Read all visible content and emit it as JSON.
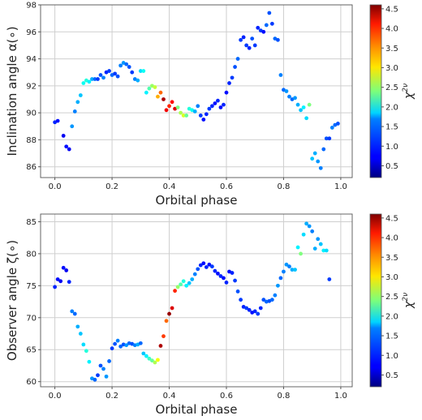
{
  "colorbar": {
    "label": "χ",
    "label_sub": "ν",
    "label_sup": "2",
    "min": 0.2,
    "max": 4.6,
    "ticks": [
      "0.5",
      "1.0",
      "1.5",
      "2.0",
      "2.5",
      "3.0",
      "3.5",
      "4.0",
      "4.5"
    ],
    "tick_values": [
      0.5,
      1.0,
      1.5,
      2.0,
      2.5,
      3.0,
      3.5,
      4.0,
      4.5
    ],
    "colormap": "jet"
  },
  "chart_data": [
    {
      "type": "scatter",
      "title": "",
      "xlabel": "Orbital phase",
      "ylabel": "Inclination angle α(∘)",
      "xlim": [
        -0.05,
        1.04
      ],
      "ylim": [
        85.2,
        98.0
      ],
      "xticks": [
        "0.0",
        "0.2",
        "0.4",
        "0.6",
        "0.8",
        "1.0"
      ],
      "xtick_values": [
        0.0,
        0.2,
        0.4,
        0.6,
        0.8,
        1.0
      ],
      "yticks": [
        "86",
        "88",
        "90",
        "92",
        "94",
        "96",
        "98"
      ],
      "ytick_values": [
        86,
        88,
        90,
        92,
        94,
        96,
        98
      ],
      "grid": true,
      "points": [
        [
          0.0,
          89.3,
          0.9
        ],
        [
          0.01,
          89.4,
          0.8
        ],
        [
          0.03,
          88.3,
          0.7
        ],
        [
          0.04,
          87.5,
          0.8
        ],
        [
          0.05,
          87.3,
          0.7
        ],
        [
          0.06,
          89.0,
          1.4
        ],
        [
          0.07,
          90.1,
          1.3
        ],
        [
          0.08,
          90.8,
          1.5
        ],
        [
          0.09,
          91.3,
          1.6
        ],
        [
          0.1,
          92.2,
          1.9
        ],
        [
          0.11,
          92.4,
          2.0
        ],
        [
          0.12,
          92.3,
          1.8
        ],
        [
          0.13,
          92.5,
          1.5
        ],
        [
          0.14,
          92.5,
          1.2
        ],
        [
          0.15,
          92.5,
          1.0
        ],
        [
          0.16,
          92.8,
          1.1
        ],
        [
          0.17,
          92.6,
          1.3
        ],
        [
          0.18,
          93.0,
          0.9
        ],
        [
          0.19,
          93.1,
          1.0
        ],
        [
          0.2,
          92.8,
          1.2
        ],
        [
          0.21,
          92.9,
          1.0
        ],
        [
          0.22,
          92.7,
          1.1
        ],
        [
          0.23,
          93.5,
          1.3
        ],
        [
          0.24,
          93.7,
          1.4
        ],
        [
          0.25,
          93.6,
          1.2
        ],
        [
          0.26,
          93.4,
          1.1
        ],
        [
          0.27,
          93.0,
          1.0
        ],
        [
          0.28,
          92.5,
          1.3
        ],
        [
          0.29,
          92.4,
          1.5
        ],
        [
          0.3,
          93.1,
          1.7
        ],
        [
          0.31,
          93.1,
          1.9
        ],
        [
          0.32,
          91.5,
          1.8
        ],
        [
          0.33,
          91.8,
          2.2
        ],
        [
          0.34,
          92.0,
          2.5
        ],
        [
          0.35,
          91.9,
          2.7
        ],
        [
          0.36,
          91.2,
          3.3
        ],
        [
          0.37,
          91.5,
          3.6
        ],
        [
          0.38,
          91.0,
          4.4
        ],
        [
          0.39,
          90.2,
          4.1
        ],
        [
          0.4,
          90.5,
          3.9
        ],
        [
          0.41,
          90.8,
          4.0
        ],
        [
          0.42,
          90.3,
          4.2
        ],
        [
          0.43,
          90.4,
          2.4
        ],
        [
          0.44,
          90.0,
          2.6
        ],
        [
          0.45,
          89.8,
          2.8
        ],
        [
          0.46,
          89.8,
          2.3
        ],
        [
          0.47,
          90.3,
          2.0
        ],
        [
          0.48,
          90.2,
          1.9
        ],
        [
          0.49,
          90.1,
          1.5
        ],
        [
          0.5,
          90.5,
          1.3
        ],
        [
          0.51,
          89.8,
          1.0
        ],
        [
          0.52,
          89.5,
          0.8
        ],
        [
          0.53,
          89.9,
          0.9
        ],
        [
          0.54,
          90.3,
          1.0
        ],
        [
          0.55,
          90.5,
          0.9
        ],
        [
          0.56,
          90.7,
          0.8
        ],
        [
          0.57,
          90.9,
          0.9
        ],
        [
          0.58,
          90.4,
          0.8
        ],
        [
          0.59,
          90.6,
          0.9
        ],
        [
          0.6,
          91.5,
          0.8
        ],
        [
          0.61,
          92.2,
          0.9
        ],
        [
          0.62,
          92.6,
          1.0
        ],
        [
          0.63,
          93.4,
          1.1
        ],
        [
          0.64,
          94.0,
          1.2
        ],
        [
          0.65,
          95.4,
          1.0
        ],
        [
          0.66,
          95.6,
          0.9
        ],
        [
          0.67,
          95.0,
          1.0
        ],
        [
          0.68,
          94.8,
          0.9
        ],
        [
          0.69,
          95.5,
          1.1
        ],
        [
          0.7,
          95.0,
          1.0
        ],
        [
          0.71,
          96.3,
          0.9
        ],
        [
          0.72,
          96.1,
          1.0
        ],
        [
          0.73,
          96.0,
          0.8
        ],
        [
          0.74,
          96.5,
          1.2
        ],
        [
          0.75,
          97.4,
          1.1
        ],
        [
          0.76,
          96.6,
          1.0
        ],
        [
          0.77,
          95.5,
          1.2
        ],
        [
          0.78,
          95.4,
          1.1
        ],
        [
          0.79,
          92.8,
          1.3
        ],
        [
          0.8,
          91.7,
          1.2
        ],
        [
          0.81,
          91.6,
          1.4
        ],
        [
          0.82,
          91.2,
          1.3
        ],
        [
          0.83,
          91.0,
          1.2
        ],
        [
          0.84,
          91.1,
          1.4
        ],
        [
          0.85,
          90.6,
          1.5
        ],
        [
          0.86,
          90.2,
          1.6
        ],
        [
          0.87,
          90.4,
          1.8
        ],
        [
          0.88,
          89.6,
          1.7
        ],
        [
          0.89,
          90.6,
          2.4
        ],
        [
          0.9,
          86.6,
          1.6
        ],
        [
          0.91,
          87.0,
          1.5
        ],
        [
          0.92,
          86.4,
          1.4
        ],
        [
          0.93,
          85.9,
          1.3
        ],
        [
          0.94,
          87.3,
          1.2
        ],
        [
          0.95,
          88.1,
          1.1
        ],
        [
          0.96,
          88.1,
          1.0
        ],
        [
          0.97,
          88.9,
          1.3
        ],
        [
          0.98,
          89.1,
          1.2
        ],
        [
          0.99,
          89.2,
          1.1
        ]
      ]
    },
    {
      "type": "scatter",
      "title": "",
      "xlabel": "Orbital phase",
      "ylabel": "Observer angle ζ(∘)",
      "xlim": [
        -0.05,
        1.04
      ],
      "ylim": [
        59.2,
        86.2
      ],
      "xticks": [
        "0.0",
        "0.2",
        "0.4",
        "0.6",
        "0.8",
        "1.0"
      ],
      "xtick_values": [
        0.0,
        0.2,
        0.4,
        0.6,
        0.8,
        1.0
      ],
      "yticks": [
        "60",
        "65",
        "70",
        "75",
        "80",
        "85"
      ],
      "ytick_values": [
        60,
        65,
        70,
        75,
        80,
        85
      ],
      "grid": true,
      "points": [
        [
          0.0,
          74.8,
          0.9
        ],
        [
          0.01,
          76.0,
          0.8
        ],
        [
          0.02,
          75.7,
          0.7
        ],
        [
          0.03,
          77.8,
          0.8
        ],
        [
          0.04,
          77.4,
          0.7
        ],
        [
          0.05,
          75.6,
          0.9
        ],
        [
          0.06,
          71.0,
          1.3
        ],
        [
          0.07,
          70.6,
          1.2
        ],
        [
          0.08,
          68.6,
          1.5
        ],
        [
          0.09,
          67.5,
          1.6
        ],
        [
          0.1,
          65.8,
          1.7
        ],
        [
          0.11,
          64.8,
          2.0
        ],
        [
          0.12,
          63.1,
          1.8
        ],
        [
          0.13,
          60.5,
          1.4
        ],
        [
          0.14,
          60.3,
          1.2
        ],
        [
          0.15,
          61.0,
          1.0
        ],
        [
          0.16,
          62.5,
          1.1
        ],
        [
          0.17,
          62.0,
          1.3
        ],
        [
          0.18,
          60.8,
          1.4
        ],
        [
          0.19,
          63.2,
          1.2
        ],
        [
          0.2,
          65.2,
          1.0
        ],
        [
          0.21,
          65.9,
          1.1
        ],
        [
          0.22,
          66.4,
          1.3
        ],
        [
          0.23,
          65.5,
          1.2
        ],
        [
          0.24,
          65.8,
          1.1
        ],
        [
          0.25,
          65.7,
          1.4
        ],
        [
          0.26,
          66.0,
          1.2
        ],
        [
          0.27,
          65.9,
          1.1
        ],
        [
          0.28,
          65.7,
          1.3
        ],
        [
          0.29,
          65.8,
          1.5
        ],
        [
          0.3,
          66.0,
          1.2
        ],
        [
          0.31,
          64.4,
          1.6
        ],
        [
          0.32,
          64.0,
          1.8
        ],
        [
          0.33,
          63.6,
          2.1
        ],
        [
          0.34,
          63.3,
          2.3
        ],
        [
          0.35,
          63.0,
          2.6
        ],
        [
          0.36,
          63.4,
          2.9
        ],
        [
          0.37,
          65.6,
          4.4
        ],
        [
          0.38,
          67.1,
          3.8
        ],
        [
          0.39,
          69.5,
          3.6
        ],
        [
          0.4,
          70.6,
          4.5
        ],
        [
          0.41,
          71.5,
          4.2
        ],
        [
          0.42,
          74.2,
          3.9
        ],
        [
          0.43,
          74.8,
          2.5
        ],
        [
          0.44,
          75.2,
          2.2
        ],
        [
          0.45,
          75.7,
          2.0
        ],
        [
          0.46,
          75.0,
          1.8
        ],
        [
          0.47,
          75.4,
          1.6
        ],
        [
          0.48,
          76.0,
          1.5
        ],
        [
          0.49,
          76.8,
          1.3
        ],
        [
          0.5,
          77.6,
          1.1
        ],
        [
          0.51,
          78.2,
          0.9
        ],
        [
          0.52,
          78.5,
          0.8
        ],
        [
          0.53,
          77.9,
          0.9
        ],
        [
          0.54,
          78.3,
          0.8
        ],
        [
          0.55,
          78.0,
          1.0
        ],
        [
          0.56,
          77.3,
          0.9
        ],
        [
          0.57,
          76.9,
          0.8
        ],
        [
          0.58,
          76.5,
          0.9
        ],
        [
          0.59,
          76.2,
          0.8
        ],
        [
          0.6,
          75.5,
          0.9
        ],
        [
          0.61,
          77.2,
          0.8
        ],
        [
          0.62,
          77.0,
          0.9
        ],
        [
          0.63,
          75.8,
          1.0
        ],
        [
          0.64,
          74.1,
          1.1
        ],
        [
          0.65,
          72.8,
          1.0
        ],
        [
          0.66,
          71.7,
          0.9
        ],
        [
          0.67,
          71.5,
          1.0
        ],
        [
          0.68,
          71.2,
          0.9
        ],
        [
          0.69,
          70.8,
          0.8
        ],
        [
          0.7,
          71.0,
          0.9
        ],
        [
          0.71,
          70.6,
          1.0
        ],
        [
          0.72,
          71.5,
          0.9
        ],
        [
          0.73,
          72.8,
          1.1
        ],
        [
          0.74,
          72.5,
          1.2
        ],
        [
          0.75,
          72.6,
          1.1
        ],
        [
          0.76,
          72.8,
          1.2
        ],
        [
          0.77,
          73.5,
          1.3
        ],
        [
          0.78,
          75.0,
          1.4
        ],
        [
          0.79,
          76.2,
          1.2
        ],
        [
          0.8,
          77.2,
          1.3
        ],
        [
          0.81,
          78.3,
          1.4
        ],
        [
          0.82,
          78.0,
          1.3
        ],
        [
          0.83,
          77.5,
          1.5
        ],
        [
          0.84,
          77.5,
          1.6
        ],
        [
          0.85,
          81.0,
          1.8
        ],
        [
          0.86,
          80.0,
          2.4
        ],
        [
          0.87,
          83.0,
          1.7
        ],
        [
          0.88,
          84.7,
          1.5
        ],
        [
          0.89,
          84.3,
          1.4
        ],
        [
          0.9,
          83.5,
          1.3
        ],
        [
          0.91,
          80.8,
          1.5
        ],
        [
          0.92,
          82.3,
          1.4
        ],
        [
          0.93,
          81.5,
          1.6
        ],
        [
          0.94,
          80.5,
          1.8
        ],
        [
          0.95,
          80.5,
          1.7
        ],
        [
          0.96,
          76.0,
          1.0
        ]
      ]
    }
  ]
}
